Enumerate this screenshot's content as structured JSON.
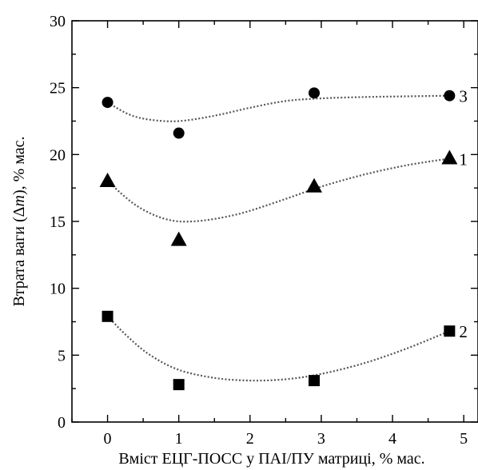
{
  "chart_data": {
    "type": "scatter",
    "xlabel": "Вміст ЕЦГ-ПОСС у ПАІ/ПУ матриці, % мас.",
    "ylabel_parts": [
      "Втрата ваги (",
      "Δ",
      "m",
      "), % мас."
    ],
    "xlim": [
      -0.5,
      5.2
    ],
    "ylim": [
      0,
      30
    ],
    "x_ticks": [
      "0",
      "1",
      "2",
      "3",
      "4",
      "5"
    ],
    "y_ticks": [
      "0",
      "5",
      "10",
      "15",
      "20",
      "25",
      "30"
    ],
    "grid": false,
    "series": [
      {
        "name": "1",
        "marker": "triangle",
        "x": [
          0,
          1,
          2.9,
          4.8
        ],
        "y": [
          18.0,
          13.6,
          17.6,
          19.7
        ],
        "fit": [
          [
            0,
            18.0
          ],
          [
            0.4,
            16.2
          ],
          [
            0.8,
            15.2
          ],
          [
            1.2,
            15.0
          ],
          [
            1.8,
            15.5
          ],
          [
            2.4,
            16.5
          ],
          [
            3.0,
            17.6
          ],
          [
            3.6,
            18.5
          ],
          [
            4.2,
            19.2
          ],
          [
            4.8,
            19.7
          ]
        ]
      },
      {
        "name": "2",
        "marker": "square",
        "x": [
          0,
          1,
          2.9,
          4.8
        ],
        "y": [
          7.9,
          2.8,
          3.1,
          6.8
        ],
        "fit": [
          [
            0,
            7.9
          ],
          [
            0.3,
            6.3
          ],
          [
            0.6,
            5.0
          ],
          [
            1.0,
            3.9
          ],
          [
            1.5,
            3.3
          ],
          [
            2.0,
            3.1
          ],
          [
            2.5,
            3.2
          ],
          [
            3.0,
            3.6
          ],
          [
            3.6,
            4.4
          ],
          [
            4.2,
            5.5
          ],
          [
            4.8,
            6.8
          ]
        ]
      },
      {
        "name": "3",
        "marker": "circle",
        "x": [
          0,
          1,
          2.9,
          4.8
        ],
        "y": [
          23.9,
          21.6,
          24.6,
          24.4
        ],
        "fit": [
          [
            0,
            23.9
          ],
          [
            0.3,
            23.0
          ],
          [
            0.6,
            22.6
          ],
          [
            1.0,
            22.5
          ],
          [
            1.5,
            22.9
          ],
          [
            2.0,
            23.5
          ],
          [
            2.5,
            24.0
          ],
          [
            3.0,
            24.2
          ],
          [
            3.6,
            24.3
          ],
          [
            4.2,
            24.35
          ],
          [
            4.8,
            24.4
          ]
        ]
      }
    ]
  }
}
